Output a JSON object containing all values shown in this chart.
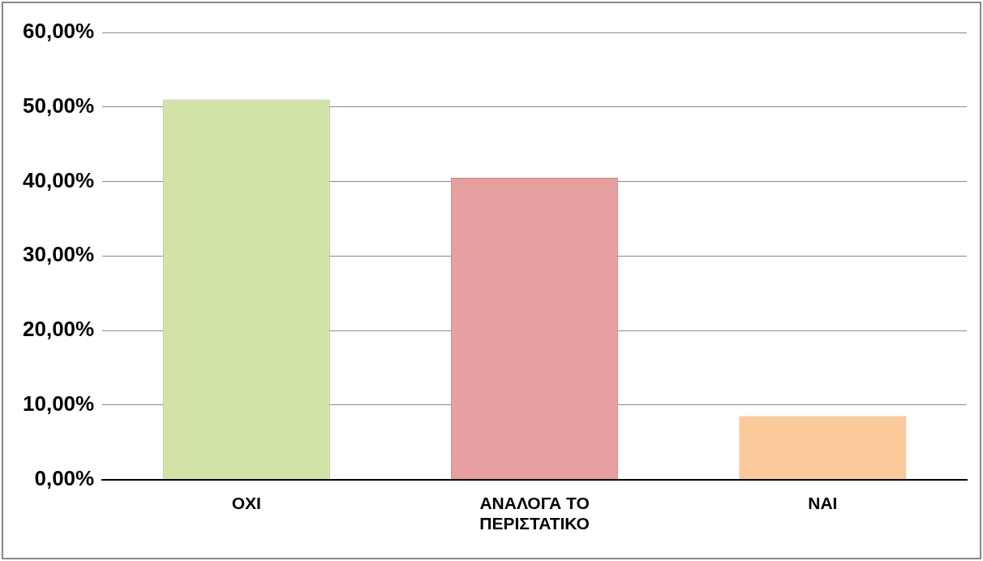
{
  "chart_data": {
    "type": "bar",
    "categories": [
      "ΟΧΙ",
      "ΑΝΑΛΟΓΑ ΤΟ ΠΕΡΙΣΤΑΤΙΚΟ",
      "ΝΑΙ"
    ],
    "values": [
      51,
      40.5,
      8.5
    ],
    "colors": [
      "#d1e3a6",
      "#e6a09f",
      "#fcc99b"
    ],
    "ylim": [
      0,
      60
    ],
    "yticks": [
      {
        "value": 0,
        "label": "0,00%"
      },
      {
        "value": 10,
        "label": "10,00%"
      },
      {
        "value": 20,
        "label": "20,00%"
      },
      {
        "value": 30,
        "label": "30,00%"
      },
      {
        "value": 40,
        "label": "40,00%"
      },
      {
        "value": 50,
        "label": "50,00%"
      },
      {
        "value": 60,
        "label": "60,00%"
      }
    ],
    "grid": "y",
    "legend": false
  }
}
